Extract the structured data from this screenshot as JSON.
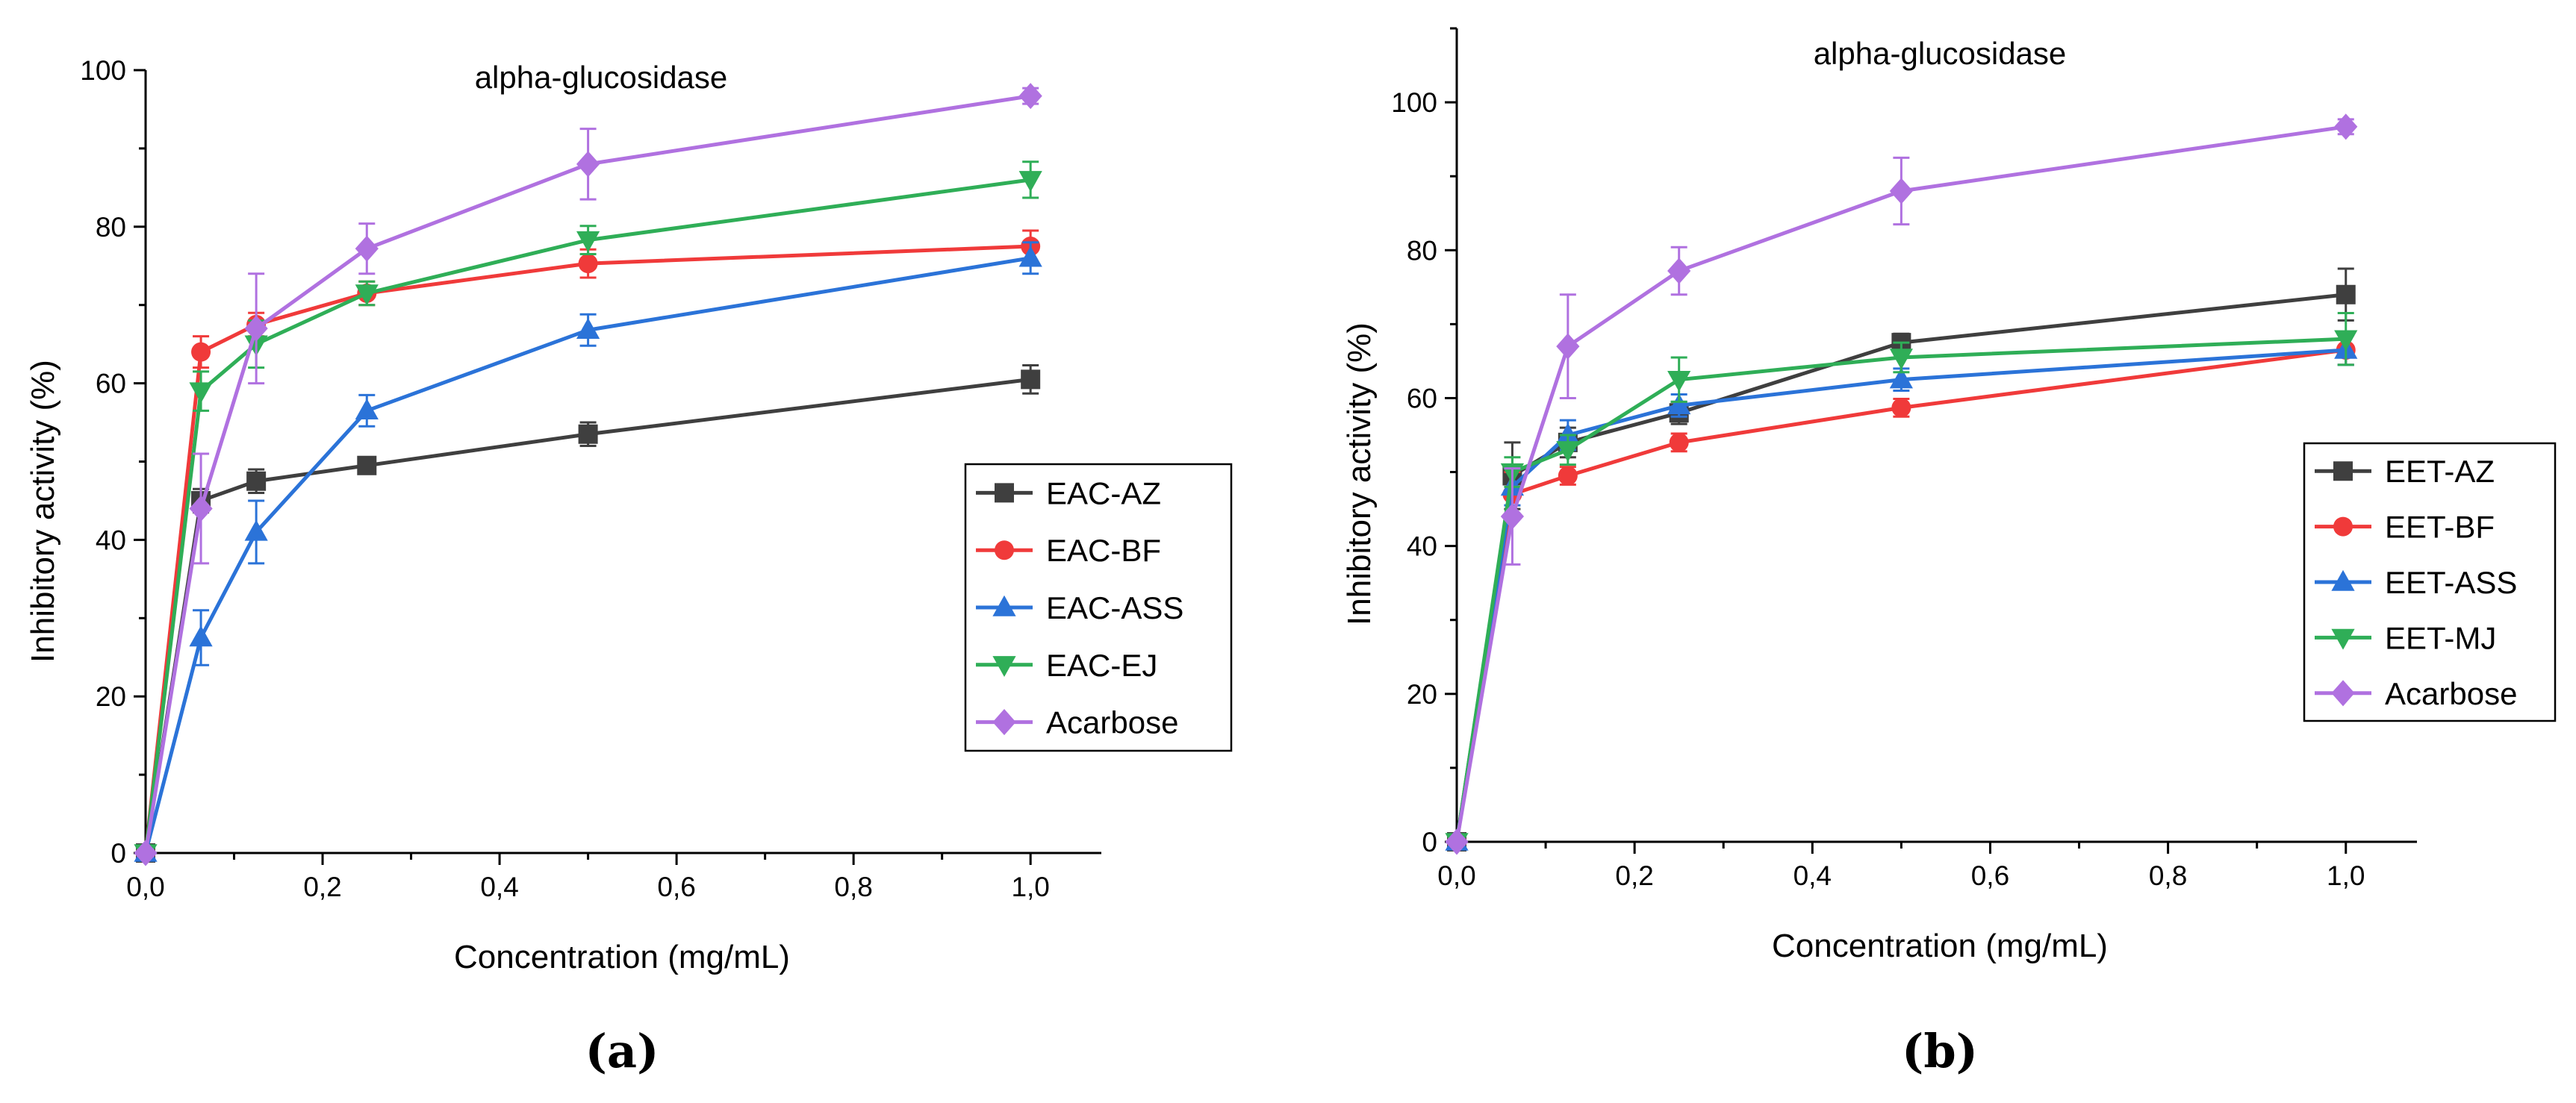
{
  "chart_data": [
    {
      "type": "line",
      "panel_label": "(a)",
      "title": "alpha-glucosidase",
      "xlabel": "Concentration (mg/mL)",
      "ylabel": "Inhibitory activity (%)",
      "xlim": [
        0,
        1.08
      ],
      "ylim": [
        0,
        100
      ],
      "x_ticks": [
        0,
        0.2,
        0.4,
        0.6,
        0.8,
        1.0
      ],
      "x_tick_labels": [
        "0,0",
        "0,2",
        "0,4",
        "0,6",
        "0,8",
        "1,0"
      ],
      "y_ticks": [
        0,
        20,
        40,
        60,
        80,
        100
      ],
      "y_tick_labels": [
        "0",
        "20",
        "40",
        "60",
        "80",
        "100"
      ],
      "legend_position": "right",
      "x": [
        0,
        0.0625,
        0.125,
        0.25,
        0.5,
        1.0
      ],
      "series": [
        {
          "name": "EAC-AZ",
          "color": "#3f3f3f",
          "marker": "square",
          "values": [
            0,
            45,
            47.5,
            49.5,
            53.5,
            60.5
          ],
          "errors": [
            0,
            1.5,
            1.5,
            1,
            1.5,
            1.8
          ]
        },
        {
          "name": "EAC-BF",
          "color": "#f03a3a",
          "marker": "circle",
          "values": [
            0,
            64,
            67.5,
            71.5,
            75.3,
            77.5
          ],
          "errors": [
            0,
            2,
            1.5,
            1.5,
            1.8,
            2
          ]
        },
        {
          "name": "EAC-ASS",
          "color": "#2b73d8",
          "marker": "triangle-up",
          "values": [
            0,
            27.5,
            41,
            56.5,
            66.8,
            76
          ],
          "errors": [
            0,
            3.5,
            4,
            2,
            2,
            2
          ]
        },
        {
          "name": "EAC-EJ",
          "color": "#2fae57",
          "marker": "triangle-down",
          "values": [
            0,
            59,
            65,
            71.5,
            78.3,
            86
          ],
          "errors": [
            0,
            2.5,
            3,
            1.5,
            1.8,
            2.3
          ]
        },
        {
          "name": "Acarbose",
          "color": "#b071e0",
          "marker": "diamond",
          "values": [
            0,
            44,
            67,
            77.2,
            88,
            96.7
          ],
          "errors": [
            0,
            7,
            7,
            3.2,
            4.5,
            1
          ]
        }
      ]
    },
    {
      "type": "line",
      "panel_label": "(b)",
      "title": "alpha-glucosidase",
      "xlabel": "Concentration (mg/mL)",
      "ylabel": "Inhibitory activity (%)",
      "xlim": [
        0,
        1.08
      ],
      "ylim": [
        0,
        110
      ],
      "x_ticks": [
        0,
        0.2,
        0.4,
        0.6,
        0.8,
        1.0
      ],
      "x_tick_labels": [
        "0,0",
        "0,2",
        "0,4",
        "0,6",
        "0,8",
        "1,0"
      ],
      "y_ticks": [
        0,
        20,
        40,
        60,
        80,
        100
      ],
      "y_tick_labels": [
        "0",
        "20",
        "40",
        "60",
        "80",
        "100"
      ],
      "legend_position": "right",
      "x": [
        0,
        0.0625,
        0.125,
        0.25,
        0.5,
        1.0
      ],
      "series": [
        {
          "name": "EET-AZ",
          "color": "#3f3f3f",
          "marker": "square",
          "values": [
            0,
            49.5,
            54,
            58,
            67.5,
            74
          ],
          "errors": [
            0,
            4.5,
            2,
            1.5,
            1.2,
            3.5
          ]
        },
        {
          "name": "EET-BF",
          "color": "#f03a3a",
          "marker": "circle",
          "values": [
            0,
            47,
            49.5,
            54,
            58.7,
            66.5
          ],
          "errors": [
            0,
            3,
            1.2,
            1.2,
            1.2,
            2
          ]
        },
        {
          "name": "EET-ASS",
          "color": "#2b73d8",
          "marker": "triangle-up",
          "values": [
            0,
            48,
            55,
            59,
            62.5,
            66.5
          ],
          "errors": [
            0,
            2.5,
            2,
            1.5,
            1.5,
            2
          ]
        },
        {
          "name": "EET-MJ",
          "color": "#2fae57",
          "marker": "triangle-down",
          "values": [
            0,
            50,
            53,
            62.5,
            65.5,
            68
          ],
          "errors": [
            0,
            2,
            2,
            3,
            2,
            3.5
          ]
        },
        {
          "name": "Acarbose",
          "color": "#b071e0",
          "marker": "diamond",
          "values": [
            0,
            44,
            67,
            77.2,
            88,
            96.7
          ],
          "errors": [
            0,
            6.5,
            7,
            3.2,
            4.5,
            1
          ]
        }
      ]
    }
  ]
}
